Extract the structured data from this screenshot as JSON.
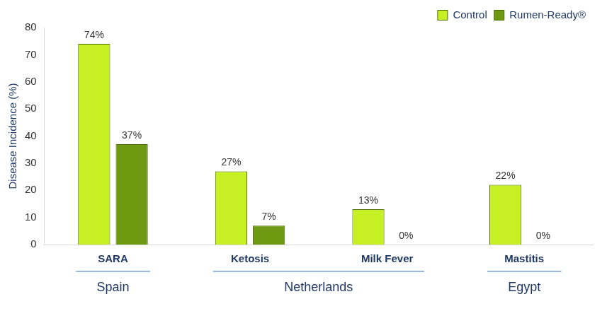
{
  "chart_data": {
    "type": "bar",
    "categories": [
      "SARA",
      "Ketosis",
      "Milk Fever",
      "Mastitis"
    ],
    "groups": [
      {
        "name": "Spain",
        "categories": [
          "SARA"
        ]
      },
      {
        "name": "Netherlands",
        "categories": [
          "Ketosis",
          "Milk Fever"
        ]
      },
      {
        "name": "Egypt",
        "categories": [
          "Mastitis"
        ]
      }
    ],
    "y_label": "Disease Incidence (%)",
    "series": [
      {
        "name": "Control",
        "color": "#c6f024",
        "values": [
          74,
          27,
          13,
          22
        ],
        "value_labels": [
          "74%",
          "27%",
          "13%",
          "22%"
        ]
      },
      {
        "name": "Rumen-Ready®",
        "color": "#6e9a12",
        "values": [
          37,
          7,
          0,
          0
        ],
        "value_labels": [
          "37%",
          "7%",
          "0%",
          "0%"
        ]
      }
    ],
    "ylim": [
      0,
      80
    ],
    "yticks": [
      0,
      10,
      20,
      30,
      40,
      50,
      60,
      70,
      80
    ],
    "grid": false,
    "legend": "top-right",
    "data_labels": true
  }
}
